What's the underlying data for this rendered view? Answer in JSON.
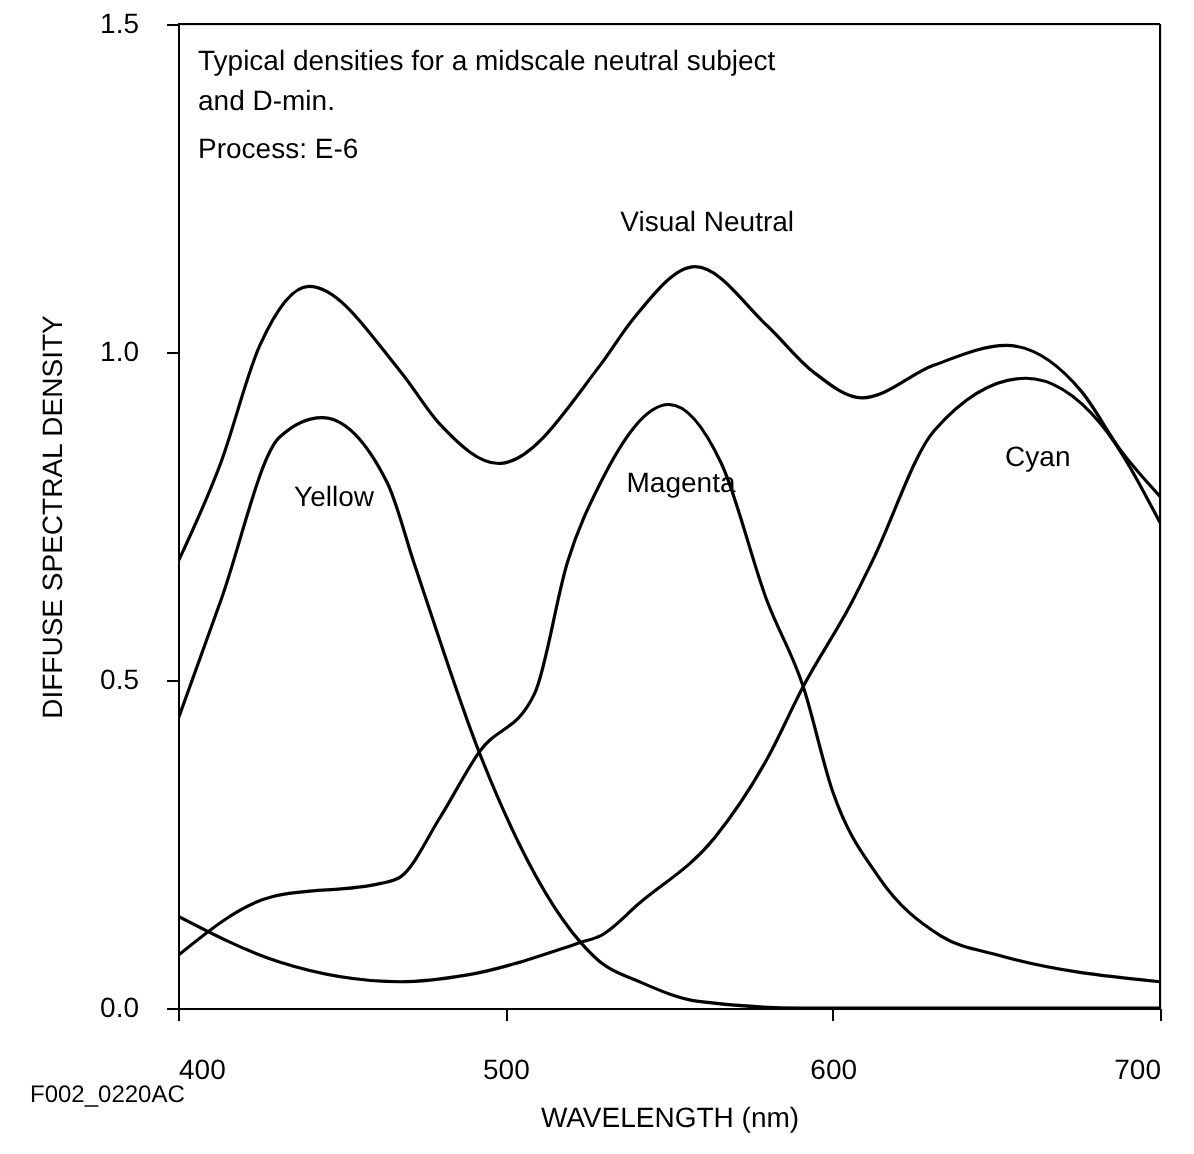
{
  "chart_data": {
    "type": "line",
    "xlabel": "WAVELENGTH (nm)",
    "ylabel": "DIFFUSE SPECTRAL DENSITY",
    "xlim": [
      400,
      700
    ],
    "ylim": [
      0,
      1.5
    ],
    "xticks": [
      400,
      500,
      600,
      700
    ],
    "yticks": [
      {
        "value": 0,
        "label": "0.0"
      },
      {
        "value": 0.5,
        "label": "0.5"
      },
      {
        "value": 1,
        "label": "1.0"
      },
      {
        "value": 1.5,
        "label": "1.5"
      }
    ],
    "marker": "none",
    "line_style": "solid",
    "series": [
      {
        "name": "Visual Neutral",
        "color": "#000000",
        "x": [
          400,
          413,
          425,
          440,
          468,
          480,
          498,
          529,
          539,
          558,
          580,
          594,
          609,
          631,
          653,
          676,
          688,
          700
        ],
        "values": [
          0.68,
          0.83,
          1.01,
          1.1,
          0.97,
          0.89,
          0.83,
          0.98,
          1.05,
          1.13,
          1.04,
          0.97,
          0.93,
          0.98,
          1.01,
          0.94,
          0.85,
          0.78
        ]
      },
      {
        "name": "Yellow",
        "color": "#000000",
        "x": [
          400,
          413,
          431,
          444,
          464,
          472,
          476,
          492,
          523,
          529,
          541,
          559,
          590,
          700
        ],
        "values": [
          0.44,
          0.62,
          0.87,
          0.9,
          0.8,
          0.68,
          0.62,
          0.39,
          0.1,
          0.07,
          0.04,
          0.01,
          0.0,
          0.0
        ]
      },
      {
        "name": "Magenta",
        "color": "#000000",
        "x": [
          400,
          429,
          462,
          468,
          480,
          492,
          509,
          519,
          529,
          550,
          566,
          580,
          591,
          600,
          614,
          633,
          651,
          700
        ],
        "values": [
          0.08,
          0.17,
          0.19,
          0.2,
          0.29,
          0.39,
          0.48,
          0.68,
          0.8,
          0.92,
          0.83,
          0.62,
          0.49,
          0.33,
          0.2,
          0.11,
          0.08,
          0.04
        ]
      },
      {
        "name": "Cyan",
        "color": "#000000",
        "x": [
          400,
          431,
          468,
          488,
          523,
          529,
          541,
          564,
          580,
          591,
          606,
          612,
          631,
          659,
          682,
          700
        ],
        "values": [
          0.14,
          0.07,
          0.04,
          0.05,
          0.1,
          0.11,
          0.16,
          0.26,
          0.38,
          0.49,
          0.62,
          0.68,
          0.88,
          0.96,
          0.89,
          0.74
        ]
      }
    ],
    "annotations": [
      "Typical densities for a midscale neutral subject\nand D-min.",
      "Process: E-6",
      "F002_0220AC"
    ]
  }
}
